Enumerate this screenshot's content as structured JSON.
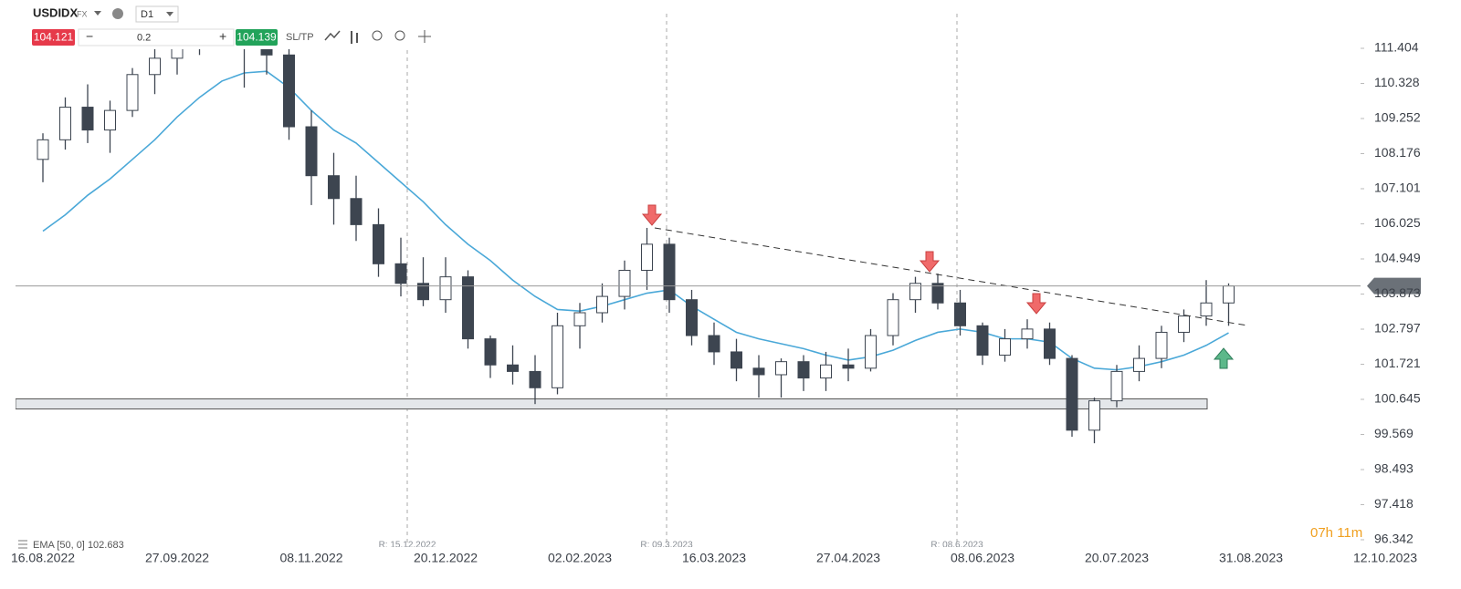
{
  "toolbar": {
    "symbol": "USDIDX",
    "market": "FX",
    "interval": "D1",
    "sell": 104.121,
    "volume": 0.2,
    "buy": 104.139,
    "sltp": "SL/TP"
  },
  "chart_data": {
    "type": "candlestick",
    "categories": [
      "16.08.2022",
      null,
      null,
      null,
      null,
      null,
      "27.09.2022",
      null,
      null,
      null,
      null,
      null,
      "08.11.2022",
      null,
      null,
      null,
      null,
      null,
      "20.12.2022",
      null,
      null,
      null,
      null,
      null,
      "02.02.2023",
      null,
      null,
      null,
      null,
      null,
      "16.03.2023",
      null,
      null,
      null,
      null,
      null,
      "27.04.2023",
      null,
      null,
      null,
      null,
      null,
      "08.06.2023",
      null,
      null,
      null,
      null,
      null,
      "20.07.2023",
      null,
      null,
      null,
      null,
      null,
      "31.08.2023",
      null,
      null,
      null,
      null,
      null,
      "12.10.2023"
    ],
    "series": [
      {
        "name": "USDIDX",
        "type": "candlestick",
        "up_color": "#ffffff",
        "down_color": "#3d4550",
        "open": [
          108.0,
          108.6,
          109.6,
          108.9,
          109.5,
          110.6,
          111.1,
          112.3,
          112.0,
          112.9,
          112.5,
          111.2,
          109.0,
          107.5,
          106.8,
          106.0,
          104.8,
          104.2,
          103.7,
          104.4,
          102.5,
          101.7,
          101.5,
          101.0,
          102.9,
          103.3,
          103.8,
          104.6,
          105.4,
          103.7,
          102.6,
          102.1,
          101.6,
          101.4,
          101.8,
          101.3,
          101.7,
          101.6,
          102.6,
          103.7,
          104.2,
          103.6,
          102.9,
          102.0,
          102.5,
          102.8,
          101.9,
          99.7,
          100.6,
          101.5,
          101.9,
          102.7,
          103.2,
          103.6,
          null,
          null,
          null,
          null,
          null,
          null,
          null
        ],
        "high": [
          108.8,
          109.9,
          110.3,
          109.8,
          110.8,
          111.4,
          112.8,
          113.0,
          113.3,
          114.0,
          113.5,
          111.5,
          109.5,
          108.2,
          107.5,
          106.5,
          105.6,
          105.0,
          105.0,
          104.6,
          102.6,
          102.3,
          102.0,
          103.3,
          103.6,
          104.2,
          104.9,
          105.9,
          105.6,
          104.0,
          103.0,
          102.5,
          102.0,
          101.9,
          102.0,
          102.1,
          102.2,
          102.8,
          103.9,
          104.4,
          104.5,
          104.0,
          103.0,
          102.8,
          103.1,
          103.0,
          102.0,
          100.7,
          101.7,
          102.3,
          102.9,
          103.4,
          104.3,
          104.2,
          null,
          null,
          null,
          null,
          null,
          null,
          null
        ],
        "low": [
          107.3,
          108.3,
          108.5,
          108.2,
          109.3,
          110.0,
          110.6,
          111.2,
          111.5,
          110.2,
          110.6,
          108.6,
          106.6,
          106.0,
          105.5,
          104.4,
          103.8,
          103.5,
          103.3,
          102.2,
          101.3,
          101.1,
          100.5,
          100.8,
          102.2,
          103.0,
          103.4,
          104.0,
          103.3,
          102.3,
          101.7,
          101.2,
          100.7,
          100.7,
          100.9,
          100.9,
          101.2,
          101.5,
          102.3,
          103.3,
          103.4,
          102.6,
          101.7,
          101.8,
          102.2,
          101.7,
          99.5,
          99.3,
          100.4,
          101.2,
          101.6,
          102.4,
          102.9,
          102.9,
          null,
          null,
          null,
          null,
          null,
          null,
          null
        ],
        "close": [
          108.6,
          109.6,
          108.9,
          109.5,
          110.6,
          111.1,
          112.3,
          112.0,
          112.9,
          112.5,
          111.2,
          109.0,
          107.5,
          106.8,
          106.0,
          104.8,
          104.2,
          103.7,
          104.4,
          102.5,
          101.7,
          101.5,
          101.0,
          102.9,
          103.3,
          103.8,
          104.6,
          105.4,
          103.7,
          102.6,
          102.1,
          101.6,
          101.4,
          101.8,
          101.3,
          101.7,
          101.6,
          102.6,
          103.7,
          104.2,
          103.6,
          102.9,
          102.0,
          102.5,
          102.8,
          101.9,
          99.7,
          100.6,
          101.5,
          101.9,
          102.7,
          103.2,
          103.6,
          104.121,
          null,
          null,
          null,
          null,
          null,
          null,
          null
        ]
      },
      {
        "name": "EMA [50, 0]",
        "type": "line",
        "color": "#4aa8d8",
        "values": [
          105.8,
          106.3,
          106.9,
          107.4,
          108.0,
          108.6,
          109.3,
          109.9,
          110.4,
          110.65,
          110.7,
          110.2,
          109.5,
          108.9,
          108.5,
          107.9,
          107.3,
          106.7,
          106.0,
          105.4,
          104.9,
          104.3,
          103.8,
          103.4,
          103.35,
          103.5,
          103.7,
          103.9,
          104.0,
          103.5,
          103.1,
          102.7,
          102.5,
          102.35,
          102.2,
          102.0,
          101.85,
          101.95,
          102.15,
          102.45,
          102.7,
          102.8,
          102.7,
          102.5,
          102.5,
          102.4,
          101.9,
          101.6,
          101.55,
          101.65,
          101.8,
          102.0,
          102.3,
          102.683,
          null,
          null,
          null,
          null,
          null,
          null,
          null
        ]
      }
    ],
    "ylim": [
      96.118,
      112.885
    ],
    "yticks": [
      111.404,
      110.328,
      109.252,
      108.176,
      107.101,
      106.025,
      104.949,
      103.873,
      102.797,
      101.721,
      100.645,
      99.569,
      98.493,
      97.418,
      96.342
    ],
    "grid": false,
    "last_price": 104.121,
    "support_zone": {
      "low": 100.35,
      "high": 100.66
    },
    "trendline": {
      "start": 105.9,
      "end": 102.9
    },
    "rollovers": [
      "R: 15.12.2022",
      "R: 09.3.2023",
      "R: 08.6.2023"
    ],
    "countdown": "07h 11m"
  }
}
